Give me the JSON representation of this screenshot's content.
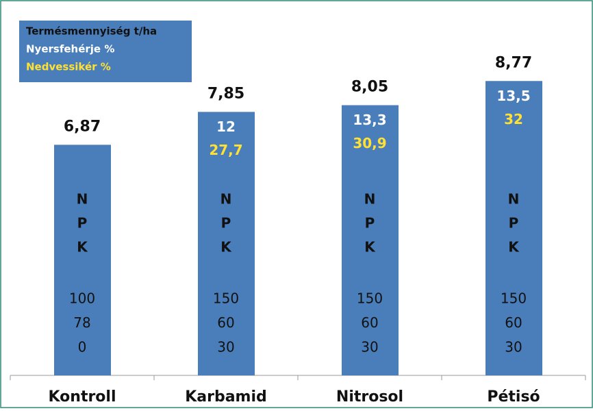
{
  "chart_data": {
    "type": "bar",
    "categories": [
      "Kontroll",
      "Karbamid",
      "Nitrosol",
      "Pétisó"
    ],
    "ylim": [
      0,
      10
    ],
    "series": [
      {
        "name": "Termésmennyiség t/ha",
        "color": "#4a7ebb",
        "values": [
          6.87,
          7.85,
          8.05,
          8.77
        ],
        "value_labels": [
          "6,87",
          "7,85",
          "8,05",
          "8,77"
        ]
      },
      {
        "name": "Nyersfehérje %",
        "color": "#ffffff",
        "values": [
          null,
          12,
          13.3,
          13.5
        ],
        "value_labels": [
          null,
          "12",
          "13,3",
          "13,5"
        ]
      },
      {
        "name": "Nedvessikér %",
        "color": "#ffe033",
        "values": [
          null,
          27.7,
          30.9,
          32
        ],
        "value_labels": [
          null,
          "27,7",
          "30,9",
          "32"
        ]
      }
    ],
    "npk_letters": [
      "N",
      "P",
      "K"
    ],
    "doses": [
      [
        "100",
        "78",
        "0"
      ],
      [
        "150",
        "60",
        "30"
      ],
      [
        "150",
        "60",
        "30"
      ],
      [
        "150",
        "60",
        "30"
      ]
    ]
  }
}
